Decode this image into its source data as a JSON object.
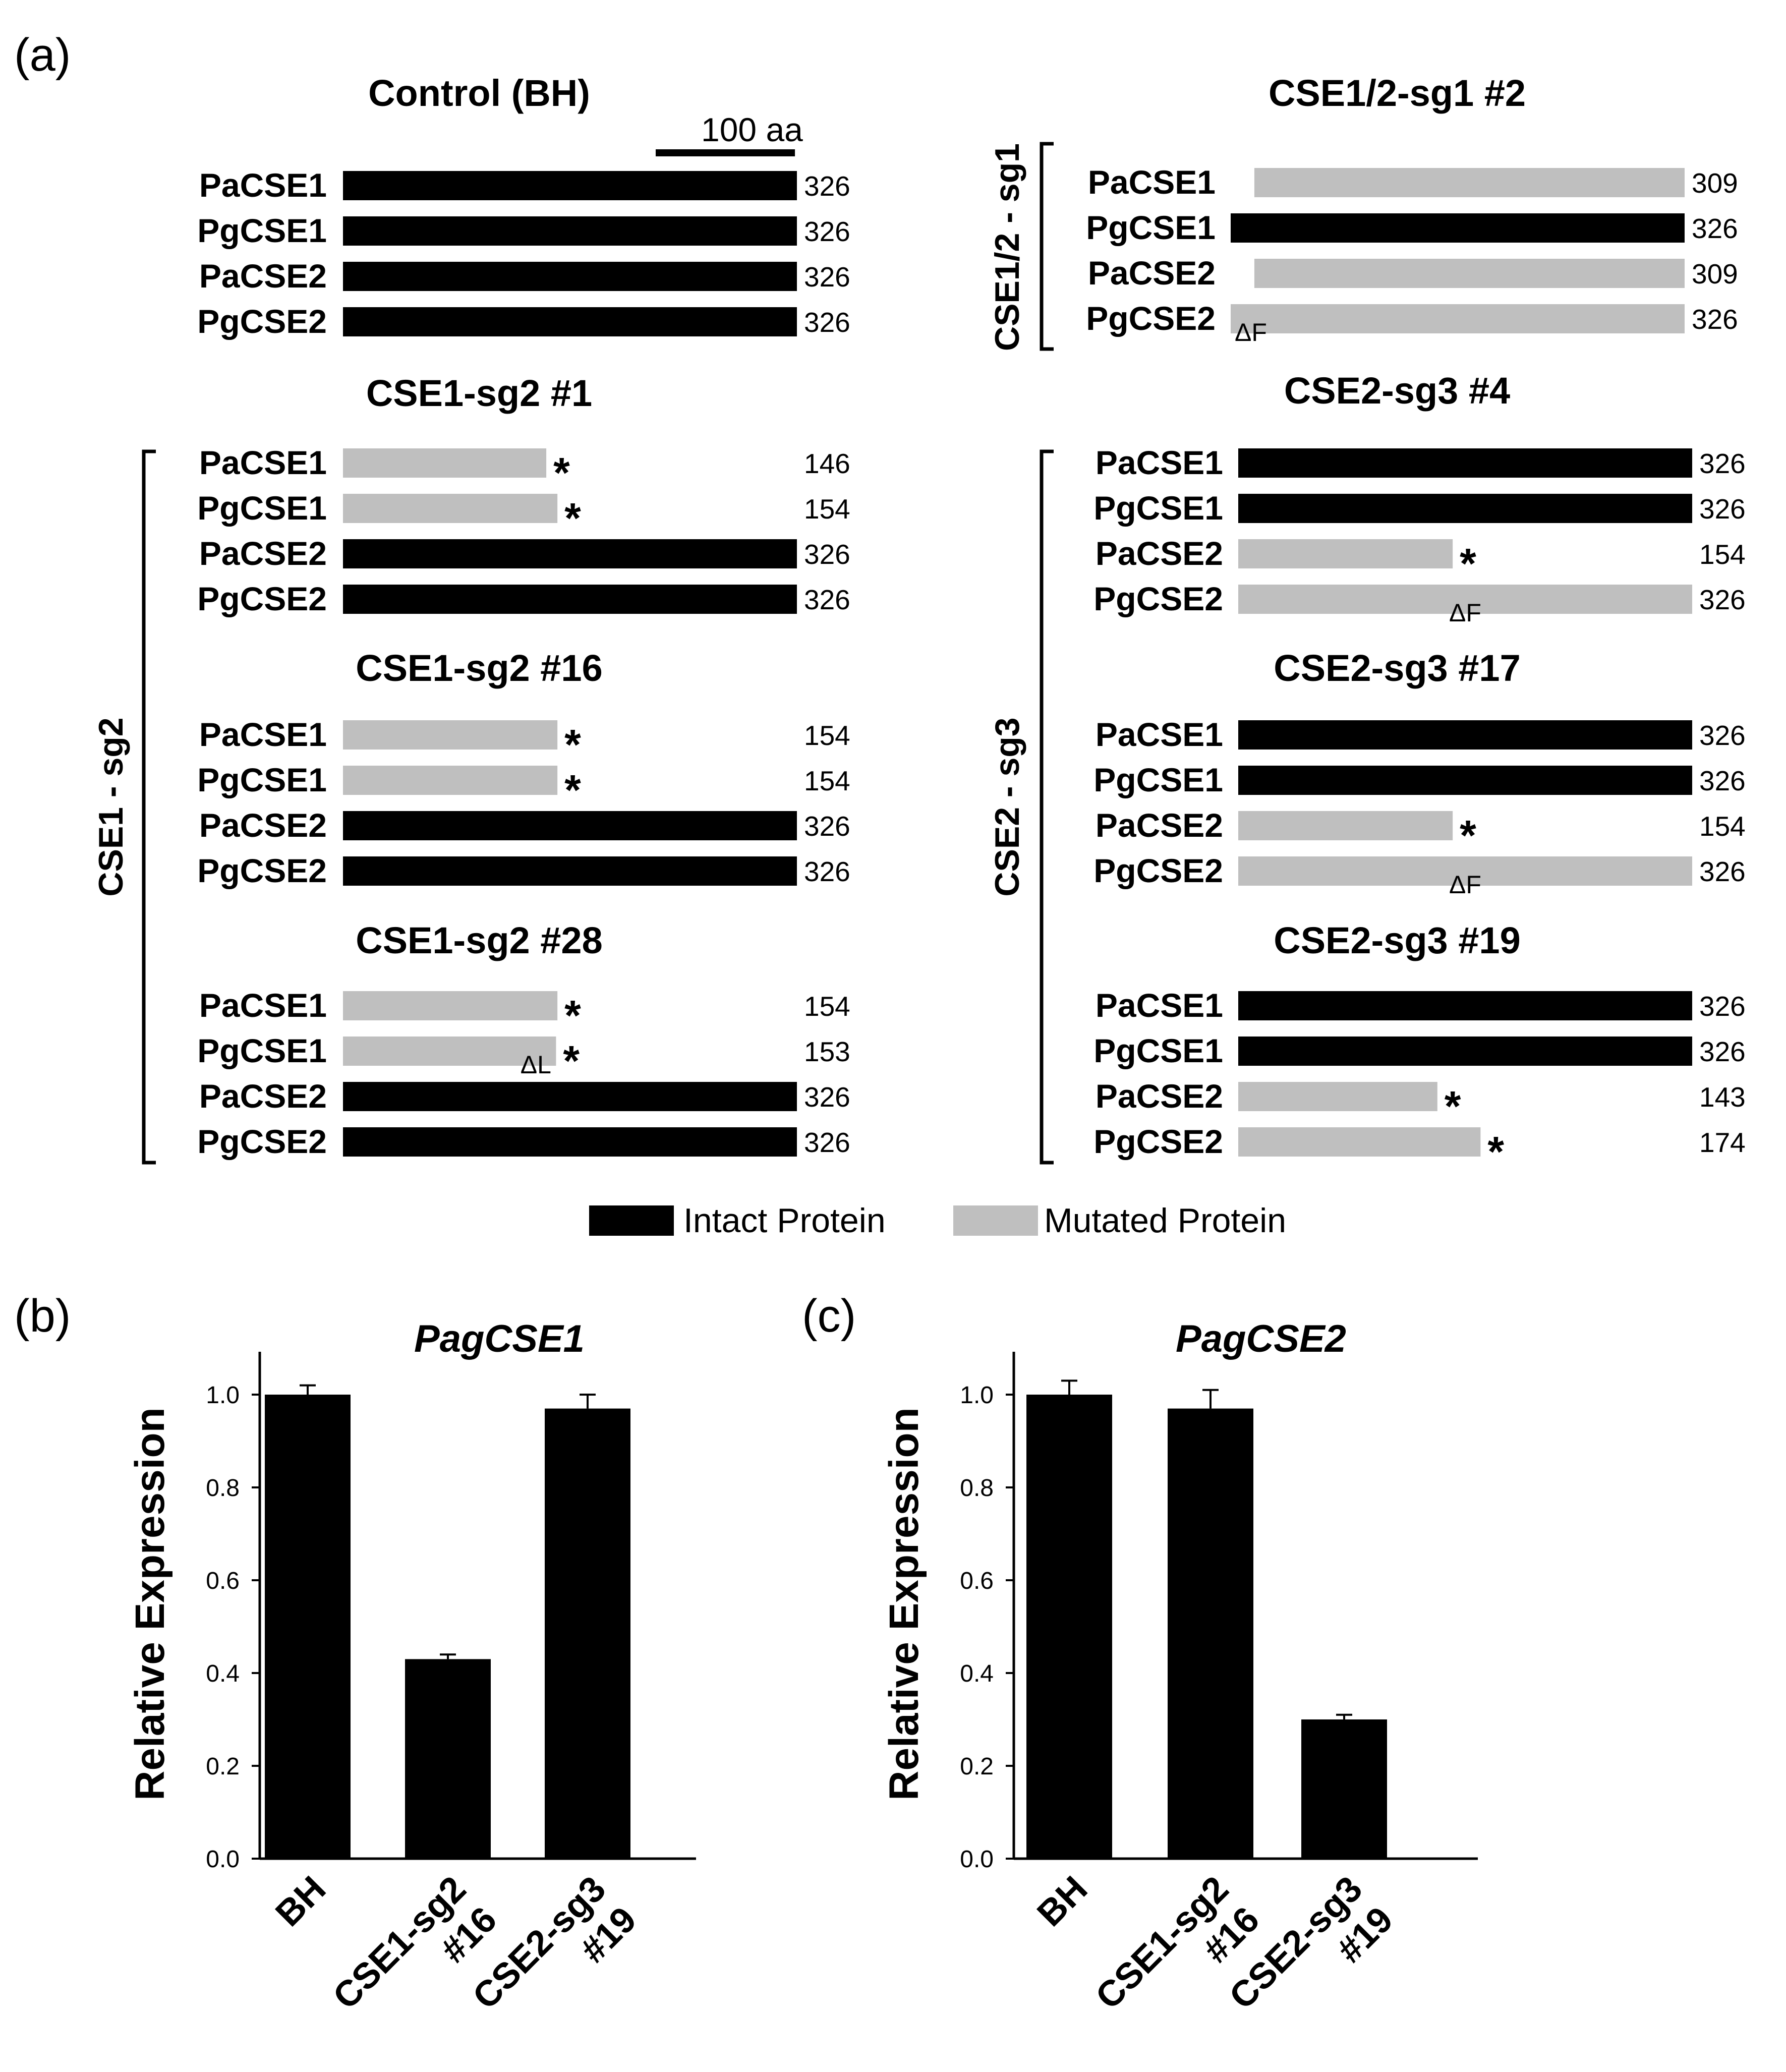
{
  "panel_a": {
    "letter": "(a)",
    "scale_bar": {
      "label": "100 aa",
      "length_aa": 100
    },
    "groups": [
      {
        "title": "Control (BH)",
        "proteins": [
          {
            "name": "PaCSE1",
            "length": 326,
            "status": "intact"
          },
          {
            "name": "PgCSE1",
            "length": 326,
            "status": "intact"
          },
          {
            "name": "PaCSE2",
            "length": 326,
            "status": "intact"
          },
          {
            "name": "PgCSE2",
            "length": 326,
            "status": "intact"
          }
        ]
      },
      {
        "title": "CSE1-sg2 #1",
        "proteins": [
          {
            "name": "PaCSE1",
            "length": 146,
            "status": "mutated",
            "stop": "*"
          },
          {
            "name": "PgCSE1",
            "length": 154,
            "status": "mutated",
            "stop": "*"
          },
          {
            "name": "PaCSE2",
            "length": 326,
            "status": "intact"
          },
          {
            "name": "PgCSE2",
            "length": 326,
            "status": "intact"
          }
        ]
      },
      {
        "title": "CSE1-sg2 #16",
        "proteins": [
          {
            "name": "PaCSE1",
            "length": 154,
            "status": "mutated",
            "stop": "*"
          },
          {
            "name": "PgCSE1",
            "length": 154,
            "status": "mutated",
            "stop": "*"
          },
          {
            "name": "PaCSE2",
            "length": 326,
            "status": "intact"
          },
          {
            "name": "PgCSE2",
            "length": 326,
            "status": "intact"
          }
        ]
      },
      {
        "title": "CSE1-sg2 #28",
        "proteins": [
          {
            "name": "PaCSE1",
            "length": 154,
            "status": "mutated",
            "stop": "*"
          },
          {
            "name": "PgCSE1",
            "length": 153,
            "status": "mutated",
            "stop": "*",
            "deletion": "ΔL"
          },
          {
            "name": "PaCSE2",
            "length": 326,
            "status": "intact"
          },
          {
            "name": "PgCSE2",
            "length": 326,
            "status": "intact"
          }
        ]
      },
      {
        "title": "CSE1/2-sg1 #2",
        "proteins": [
          {
            "name": "PaCSE1",
            "length": 309,
            "status": "mutated"
          },
          {
            "name": "PgCSE1",
            "length": 326,
            "status": "intact"
          },
          {
            "name": "PaCSE2",
            "length": 309,
            "status": "mutated"
          },
          {
            "name": "PgCSE2",
            "length": 326,
            "status": "mutated",
            "deletion": "ΔF"
          }
        ]
      },
      {
        "title": "CSE2-sg3 #4",
        "proteins": [
          {
            "name": "PaCSE1",
            "length": 326,
            "status": "intact"
          },
          {
            "name": "PgCSE1",
            "length": 326,
            "status": "intact"
          },
          {
            "name": "PaCSE2",
            "length": 154,
            "status": "mutated",
            "stop": "*"
          },
          {
            "name": "PgCSE2",
            "length": 326,
            "status": "mutated",
            "deletion": "ΔF"
          }
        ]
      },
      {
        "title": "CSE2-sg3 #17",
        "proteins": [
          {
            "name": "PaCSE1",
            "length": 326,
            "status": "intact"
          },
          {
            "name": "PgCSE1",
            "length": 326,
            "status": "intact"
          },
          {
            "name": "PaCSE2",
            "length": 154,
            "status": "mutated",
            "stop": "*"
          },
          {
            "name": "PgCSE2",
            "length": 326,
            "status": "mutated",
            "deletion": "ΔF"
          }
        ]
      },
      {
        "title": "CSE2-sg3 #19",
        "proteins": [
          {
            "name": "PaCSE1",
            "length": 326,
            "status": "intact"
          },
          {
            "name": "PgCSE1",
            "length": 326,
            "status": "intact"
          },
          {
            "name": "PaCSE2",
            "length": 143,
            "status": "mutated",
            "stop": "*"
          },
          {
            "name": "PgCSE2",
            "length": 174,
            "status": "mutated",
            "stop": "*"
          }
        ]
      }
    ],
    "brackets": [
      "CSE1 - sg2",
      "CSE1/2 - sg1",
      "CSE2 - sg3"
    ],
    "legend": [
      {
        "label": "Intact Protein",
        "color": "#000000"
      },
      {
        "label": "Mutated Protein",
        "color": "#bfbfbf"
      }
    ],
    "colors": {
      "intact": "#000000",
      "mutated": "#bfbfbf"
    }
  },
  "chart_data": [
    {
      "panel": "(b)",
      "type": "bar",
      "title": "PagCSE1",
      "ylabel": "Relative Expression",
      "categories": [
        "BH",
        "CSE1-sg2 #16",
        "CSE2-sg3 #19"
      ],
      "category_lines": [
        [
          "BH"
        ],
        [
          "CSE1-sg2",
          "#16"
        ],
        [
          "CSE2-sg3",
          "#19"
        ]
      ],
      "values": [
        1.0,
        0.43,
        0.97
      ],
      "errors": [
        0.02,
        0.01,
        0.03
      ],
      "ylim": [
        0,
        1.0
      ],
      "yticks": [
        "0.0",
        "0.2",
        "0.4",
        "0.6",
        "0.8",
        "1.0"
      ],
      "bar_color": "#000000"
    },
    {
      "panel": "(c)",
      "type": "bar",
      "title": "PagCSE2",
      "ylabel": "Relative Expression",
      "categories": [
        "BH",
        "CSE1-sg2 #16",
        "CSE2-sg3 #19"
      ],
      "category_lines": [
        [
          "BH"
        ],
        [
          "CSE1-sg2",
          "#16"
        ],
        [
          "CSE2-sg3",
          "#19"
        ]
      ],
      "values": [
        1.0,
        0.97,
        0.3
      ],
      "errors": [
        0.03,
        0.04,
        0.01
      ],
      "ylim": [
        0,
        1.0
      ],
      "yticks": [
        "0.0",
        "0.2",
        "0.4",
        "0.6",
        "0.8",
        "1.0"
      ],
      "bar_color": "#000000"
    }
  ]
}
